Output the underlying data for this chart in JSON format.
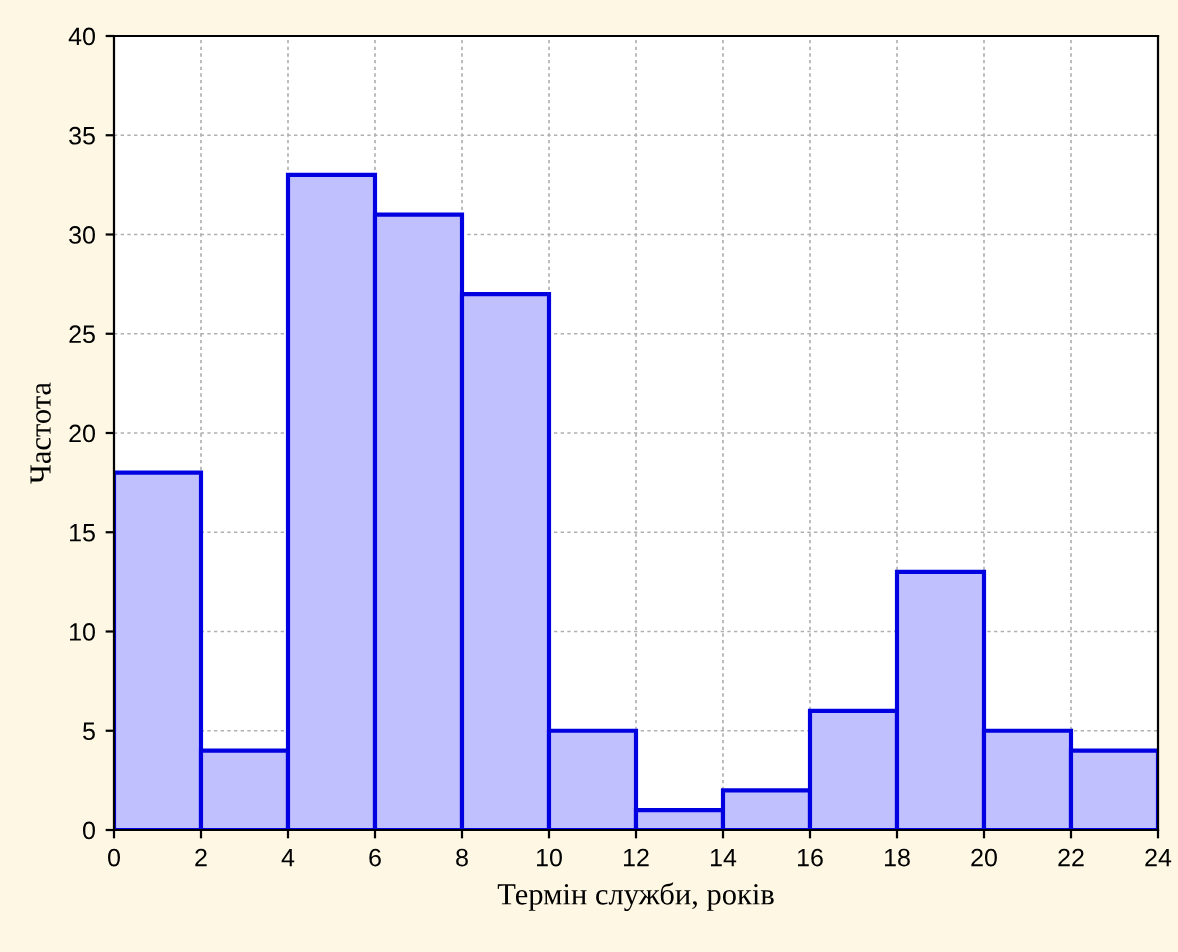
{
  "chart_data": {
    "type": "histogram",
    "xlabel": "Термін служби, років",
    "ylabel": "Частота",
    "bins": [
      0,
      2,
      4,
      6,
      8,
      10,
      12,
      14,
      16,
      18,
      20,
      22,
      24
    ],
    "values": [
      18,
      4,
      33,
      31,
      27,
      5,
      1,
      2,
      6,
      13,
      5,
      4
    ],
    "color": "#c0c0ff",
    "xlim": [
      0,
      24
    ],
    "xticks": [
      0,
      2,
      4,
      6,
      8,
      10,
      12,
      14,
      16,
      18,
      20,
      22,
      24
    ],
    "ylim": [
      0,
      40
    ],
    "yticks": [
      0,
      5,
      10,
      15,
      20,
      25,
      30,
      35,
      40
    ],
    "grid": true
  }
}
